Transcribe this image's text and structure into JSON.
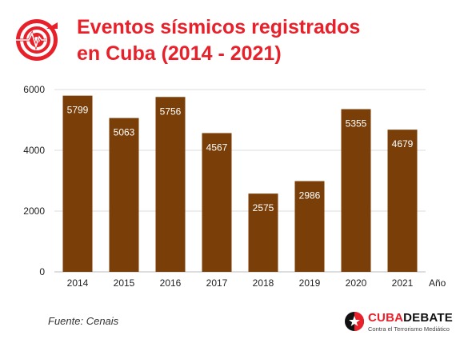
{
  "title": {
    "line1": "Eventos sísmicos registrados",
    "line2": "en Cuba (2014 - 2021)"
  },
  "source": "Fuente: Cenais",
  "brand": {
    "name_part1": "CUBA",
    "name_part2": "DEBATE",
    "tagline": "Contra el Terrorismo Mediático"
  },
  "colors": {
    "title": "#e8202a",
    "bar": "#7a3f08",
    "bar_label": "#ffffff",
    "grid": "#dddddd",
    "brand_red": "#e8202a"
  },
  "chart_data": {
    "type": "bar",
    "categories": [
      "2014",
      "2015",
      "2016",
      "2017",
      "2018",
      "2019",
      "2020",
      "2021"
    ],
    "values": [
      5799,
      5063,
      5756,
      4567,
      2575,
      2986,
      5355,
      4679
    ],
    "title": "Eventos sísmicos registrados en Cuba (2014 - 2021)",
    "xlabel": "Año",
    "ylabel": "",
    "ylim": [
      0,
      6000
    ],
    "yticks": [
      0,
      2000,
      4000,
      6000
    ],
    "grid": true,
    "data_labels": true
  }
}
